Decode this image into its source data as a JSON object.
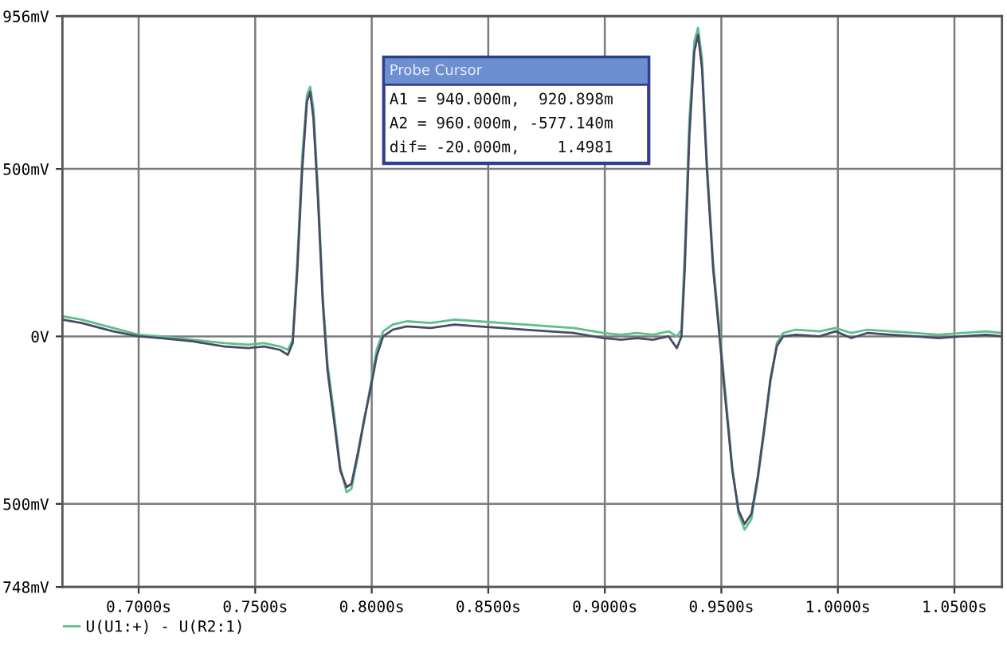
{
  "chart_data": {
    "type": "line",
    "x": [
      0.6673,
      0.6755,
      0.6891,
      0.7,
      0.7095,
      0.7232,
      0.7368,
      0.747,
      0.7538,
      0.7606,
      0.764,
      0.7661,
      0.7681,
      0.7702,
      0.7722,
      0.7736,
      0.775,
      0.777,
      0.779,
      0.781,
      0.7838,
      0.7865,
      0.7892,
      0.7913,
      0.794,
      0.7967,
      0.7994,
      0.8021,
      0.8049,
      0.809,
      0.8151,
      0.8253,
      0.8355,
      0.8457,
      0.8559,
      0.8662,
      0.8764,
      0.8866,
      0.8995,
      0.907,
      0.9138,
      0.9206,
      0.9274,
      0.9309,
      0.9329,
      0.9343,
      0.9363,
      0.9384,
      0.94,
      0.9417,
      0.9438,
      0.9465,
      0.9492,
      0.9519,
      0.9547,
      0.9574,
      0.96,
      0.9629,
      0.9656,
      0.9683,
      0.971,
      0.9738,
      0.9765,
      0.9819,
      0.9921,
      0.999,
      1.0058,
      1.0126,
      1.0228,
      1.033,
      1.0432,
      1.0534,
      1.0636,
      1.0704
    ],
    "series": [
      {
        "name": "U(U1:+) - U(R2:1)",
        "color": "#5cbf8c",
        "values": [
          60,
          50,
          25,
          5,
          0,
          -10,
          -20,
          -25,
          -20,
          -30,
          -40,
          -10,
          230,
          540,
          720,
          745,
          680,
          430,
          120,
          -80,
          -230,
          -390,
          -465,
          -455,
          -360,
          -255,
          -150,
          -40,
          15,
          35,
          45,
          40,
          50,
          45,
          40,
          35,
          30,
          25,
          10,
          5,
          10,
          5,
          15,
          0,
          20,
          250,
          650,
          880,
          921,
          830,
          520,
          220,
          20,
          -180,
          -390,
          -530,
          -577,
          -545,
          -430,
          -290,
          -140,
          -20,
          10,
          20,
          15,
          25,
          10,
          20,
          15,
          10,
          5,
          10,
          15,
          10
        ]
      },
      {
        "color": "#4b4a66",
        "values": [
          50,
          40,
          15,
          0,
          -5,
          -15,
          -30,
          -35,
          -30,
          -40,
          -55,
          -20,
          200,
          500,
          700,
          730,
          650,
          400,
          100,
          -100,
          -250,
          -400,
          -450,
          -440,
          -350,
          -250,
          -160,
          -60,
          0,
          20,
          30,
          25,
          35,
          30,
          25,
          20,
          15,
          10,
          -5,
          -10,
          -5,
          -10,
          0,
          -35,
          0,
          200,
          600,
          850,
          900,
          800,
          500,
          200,
          0,
          -200,
          -400,
          -520,
          -560,
          -530,
          -420,
          -280,
          -130,
          -30,
          0,
          5,
          0,
          15,
          -5,
          10,
          5,
          0,
          -5,
          0,
          5,
          0
        ]
      }
    ],
    "xlim": [
      0.6673,
      1.0704
    ],
    "xticks": [
      {
        "value": 0.7,
        "label": "0.7000s"
      },
      {
        "value": 0.75,
        "label": "0.7500s"
      },
      {
        "value": 0.8,
        "label": "0.8000s"
      },
      {
        "value": 0.85,
        "label": "0.8500s"
      },
      {
        "value": 0.9,
        "label": "0.9000s"
      },
      {
        "value": 0.95,
        "label": "0.9500s"
      },
      {
        "value": 1.0,
        "label": "1.0000s"
      },
      {
        "value": 1.05,
        "label": "1.0500s"
      }
    ],
    "ylim": [
      -748,
      956
    ],
    "yticks": [
      {
        "value": -748,
        "label": "748mV"
      },
      {
        "value": -500,
        "label": "500mV"
      },
      {
        "value": 0,
        "label": "0V"
      },
      {
        "value": 500,
        "label": "500mV"
      },
      {
        "value": 956,
        "label": "956mV"
      }
    ],
    "annotations": [
      "Probe Cursor",
      "A1 = 940.000m,  920.898m",
      "A2 = 960.000m, -577.140m",
      "dif= -20.000m,    1.4981"
    ],
    "grid": true,
    "legend": "bottom left"
  }
}
